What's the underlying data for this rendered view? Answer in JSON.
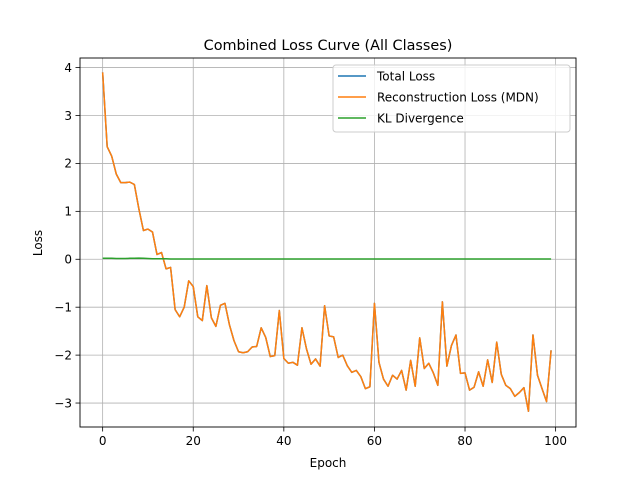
{
  "chart_data": {
    "type": "line",
    "title": "Combined Loss Curve (All Classes)",
    "xlabel": "Epoch",
    "ylabel": "Loss",
    "xlim": [
      -5,
      104.5
    ],
    "ylim": [
      -3.5,
      4.2
    ],
    "xticks": [
      0,
      20,
      40,
      60,
      80,
      100
    ],
    "yticks": [
      -3,
      -2,
      -1,
      0,
      1,
      2,
      3,
      4
    ],
    "grid": true,
    "legend_position": "top-right",
    "x_start": 0,
    "series": [
      {
        "name": "Total Loss",
        "color": "#1f77b4",
        "values": [
          3.9,
          2.35,
          2.15,
          1.78,
          1.6,
          1.6,
          1.61,
          1.56,
          1.05,
          0.6,
          0.63,
          0.57,
          0.1,
          0.14,
          -0.2,
          -0.17,
          -1.05,
          -1.2,
          -1.0,
          -0.45,
          -0.57,
          -1.2,
          -1.28,
          -0.55,
          -1.22,
          -1.4,
          -0.96,
          -0.92,
          -1.37,
          -1.7,
          -1.93,
          -1.95,
          -1.93,
          -1.83,
          -1.82,
          -1.43,
          -1.63,
          -2.03,
          -2.01,
          -1.07,
          -2.07,
          -2.17,
          -2.15,
          -2.21,
          -1.43,
          -1.87,
          -2.19,
          -2.08,
          -2.23,
          -0.97,
          -1.6,
          -1.62,
          -2.05,
          -2.0,
          -2.22,
          -2.36,
          -2.32,
          -2.45,
          -2.7,
          -2.66,
          -0.92,
          -2.15,
          -2.5,
          -2.65,
          -2.42,
          -2.5,
          -2.32,
          -2.73,
          -2.11,
          -2.65,
          -1.64,
          -2.28,
          -2.17,
          -2.37,
          -2.63,
          -0.89,
          -2.23,
          -1.8,
          -1.58,
          -2.38,
          -2.37,
          -2.73,
          -2.67,
          -2.35,
          -2.65,
          -2.1,
          -2.57,
          -1.73,
          -2.4,
          -2.63,
          -2.7,
          -2.86,
          -2.78,
          -2.68,
          -3.17,
          -1.58,
          -2.42,
          -2.7,
          -2.97,
          -1.9
        ]
      },
      {
        "name": "Reconstruction Loss (MDN)",
        "color": "#ff7f0e",
        "values": [
          3.9,
          2.35,
          2.15,
          1.78,
          1.6,
          1.6,
          1.61,
          1.56,
          1.05,
          0.6,
          0.63,
          0.57,
          0.1,
          0.14,
          -0.2,
          -0.17,
          -1.05,
          -1.2,
          -1.0,
          -0.45,
          -0.57,
          -1.2,
          -1.28,
          -0.55,
          -1.22,
          -1.4,
          -0.96,
          -0.92,
          -1.37,
          -1.7,
          -1.93,
          -1.95,
          -1.93,
          -1.83,
          -1.82,
          -1.43,
          -1.63,
          -2.03,
          -2.01,
          -1.07,
          -2.07,
          -2.17,
          -2.15,
          -2.21,
          -1.43,
          -1.87,
          -2.19,
          -2.08,
          -2.23,
          -0.97,
          -1.6,
          -1.62,
          -2.05,
          -2.0,
          -2.22,
          -2.36,
          -2.32,
          -2.45,
          -2.7,
          -2.66,
          -0.92,
          -2.15,
          -2.5,
          -2.65,
          -2.42,
          -2.5,
          -2.32,
          -2.73,
          -2.11,
          -2.65,
          -1.64,
          -2.28,
          -2.17,
          -2.37,
          -2.63,
          -0.89,
          -2.23,
          -1.8,
          -1.58,
          -2.38,
          -2.37,
          -2.73,
          -2.67,
          -2.35,
          -2.65,
          -2.1,
          -2.57,
          -1.73,
          -2.4,
          -2.63,
          -2.7,
          -2.86,
          -2.78,
          -2.68,
          -3.17,
          -1.58,
          -2.42,
          -2.7,
          -2.97,
          -1.9
        ]
      },
      {
        "name": "KL Divergence",
        "color": "#2ca02c",
        "values": [
          0.02,
          0.02,
          0.02,
          0.015,
          0.015,
          0.015,
          0.02,
          0.02,
          0.025,
          0.02,
          0.015,
          0.01,
          0.01,
          0.01,
          0.01,
          0.005,
          0.005,
          0.005,
          0.005,
          0.005,
          0.005,
          0.005,
          0.005,
          0.005,
          0.005,
          0.005,
          0.005,
          0.005,
          0.005,
          0.005,
          0.005,
          0.005,
          0.005,
          0.005,
          0.005,
          0.005,
          0.005,
          0.005,
          0.005,
          0.005,
          0.005,
          0.005,
          0.005,
          0.005,
          0.005,
          0.005,
          0.005,
          0.005,
          0.005,
          0.005,
          0.005,
          0.005,
          0.005,
          0.005,
          0.005,
          0.005,
          0.005,
          0.005,
          0.005,
          0.005,
          0.005,
          0.005,
          0.005,
          0.005,
          0.005,
          0.005,
          0.005,
          0.005,
          0.005,
          0.005,
          0.005,
          0.005,
          0.005,
          0.005,
          0.005,
          0.005,
          0.005,
          0.005,
          0.005,
          0.005,
          0.005,
          0.005,
          0.005,
          0.005,
          0.005,
          0.005,
          0.005,
          0.005,
          0.005,
          0.005,
          0.005,
          0.005,
          0.005,
          0.005,
          0.005,
          0.005,
          0.005,
          0.005,
          0.005,
          0.005
        ]
      }
    ]
  }
}
